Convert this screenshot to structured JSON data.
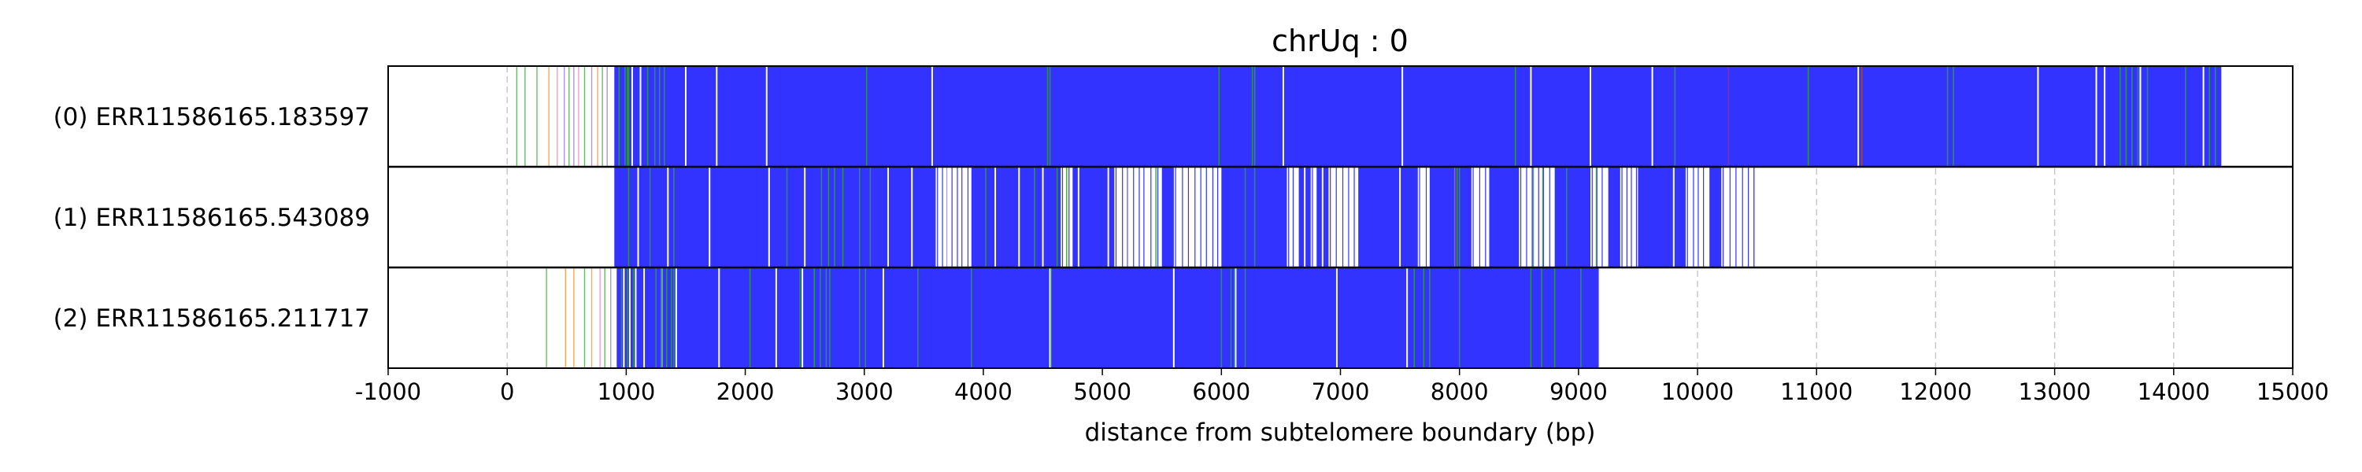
{
  "chart_data": {
    "type": "heatmap",
    "title": "chrUq : 0",
    "xlabel": "distance from subtelomere boundary (bp)",
    "xlim": [
      -1000,
      15000
    ],
    "xticks": [
      -1000,
      0,
      1000,
      2000,
      3000,
      4000,
      5000,
      6000,
      7000,
      8000,
      9000,
      10000,
      11000,
      12000,
      13000,
      14000,
      15000
    ],
    "xtick_labels": [
      "-1000",
      "0",
      "1000",
      "2000",
      "3000",
      "4000",
      "5000",
      "6000",
      "7000",
      "8000",
      "9000",
      "10000",
      "11000",
      "12000",
      "13000",
      "14000",
      "15000"
    ],
    "grid": "x dashed",
    "colors": {
      "main": "#3333ff",
      "green": "#2ca02c",
      "orange": "#ff7f0e",
      "pink": "#e377c2",
      "purple": "#9467bd",
      "red": "#d62728",
      "grid": "#c8c8c8"
    },
    "reads": [
      {
        "label": "(0) ERR11586165.183597",
        "solid_from": 900,
        "solid_to": 14400,
        "gaps": [
          1050,
          1120,
          1500,
          1760,
          2180,
          3570,
          6520,
          7520,
          8600,
          9100,
          9620,
          11350,
          12860,
          13350,
          13420,
          13720,
          14250
        ],
        "greens": [
          940,
          990,
          1010,
          1020,
          1180,
          1240,
          1280,
          1320,
          3020,
          4540,
          4560,
          5980,
          6260,
          6280,
          8470,
          9810,
          10930,
          11380,
          12100,
          12150,
          13550,
          13600,
          13650,
          13700,
          13780,
          14100,
          14300,
          14350
        ],
        "others": [
          {
            "x": 80,
            "c": "green"
          },
          {
            "x": 150,
            "c": "green"
          },
          {
            "x": 250,
            "c": "green"
          },
          {
            "x": 350,
            "c": "orange"
          },
          {
            "x": 420,
            "c": "pink"
          },
          {
            "x": 480,
            "c": "purple"
          },
          {
            "x": 520,
            "c": "green"
          },
          {
            "x": 560,
            "c": "purple"
          },
          {
            "x": 600,
            "c": "pink"
          },
          {
            "x": 650,
            "c": "green"
          },
          {
            "x": 710,
            "c": "purple"
          },
          {
            "x": 760,
            "c": "orange"
          },
          {
            "x": 800,
            "c": "green"
          },
          {
            "x": 840,
            "c": "purple"
          },
          {
            "x": 10260,
            "c": "red"
          },
          {
            "x": 11380,
            "c": "red"
          }
        ]
      },
      {
        "label": "(1) ERR11586165.543089",
        "solid_from": 900,
        "solid_to": 10480,
        "gaps": [
          1100,
          1350,
          1700,
          2200,
          2500,
          3200,
          3400,
          3700,
          4100,
          4300,
          4500,
          4800,
          5050,
          5200,
          6700,
          6850,
          7500,
          9800
        ],
        "gap_regions": [
          [
            3600,
            3900
          ],
          [
            4650,
            4750
          ],
          [
            5100,
            5500
          ],
          [
            5600,
            6000
          ],
          [
            6550,
            6650
          ],
          [
            6750,
            6800
          ],
          [
            6900,
            7150
          ],
          [
            7650,
            7750
          ],
          [
            8100,
            8250
          ],
          [
            8500,
            8800
          ],
          [
            9100,
            9250
          ],
          [
            9350,
            9500
          ],
          [
            9900,
            10100
          ],
          [
            10200,
            10480
          ]
        ],
        "greens": [
          1020,
          1200,
          1400,
          2350,
          2640,
          2700,
          2750,
          2820,
          2960,
          3050,
          4020,
          4430,
          4620,
          4700,
          5450,
          6200,
          6280,
          7980,
          8000,
          8620,
          8700,
          8900,
          9150
        ],
        "others": [
          {
            "x": 7960,
            "c": "orange"
          }
        ]
      },
      {
        "label": "(2) ERR11586165.211717",
        "solid_from": 920,
        "solid_to": 9170,
        "gaps": [
          980,
          1030,
          1080,
          1150,
          1300,
          1420,
          1780,
          2260,
          2480,
          3160,
          4560,
          5600,
          6120,
          6970,
          7560
        ],
        "greens": [
          960,
          1010,
          1060,
          1250,
          1300,
          1340,
          1380,
          1400,
          2040,
          2460,
          2580,
          2630,
          2680,
          2710,
          2960,
          3010,
          3450,
          3900,
          4570,
          6000,
          6080,
          6110,
          6200,
          7620,
          7700,
          7750,
          8000,
          8600,
          8690,
          8800,
          9020
        ],
        "others": [
          {
            "x": 330,
            "c": "green"
          },
          {
            "x": 490,
            "c": "orange"
          },
          {
            "x": 560,
            "c": "orange"
          },
          {
            "x": 650,
            "c": "green"
          },
          {
            "x": 710,
            "c": "orange"
          },
          {
            "x": 780,
            "c": "pink"
          },
          {
            "x": 820,
            "c": "green"
          },
          {
            "x": 870,
            "c": "purple"
          }
        ]
      }
    ]
  }
}
